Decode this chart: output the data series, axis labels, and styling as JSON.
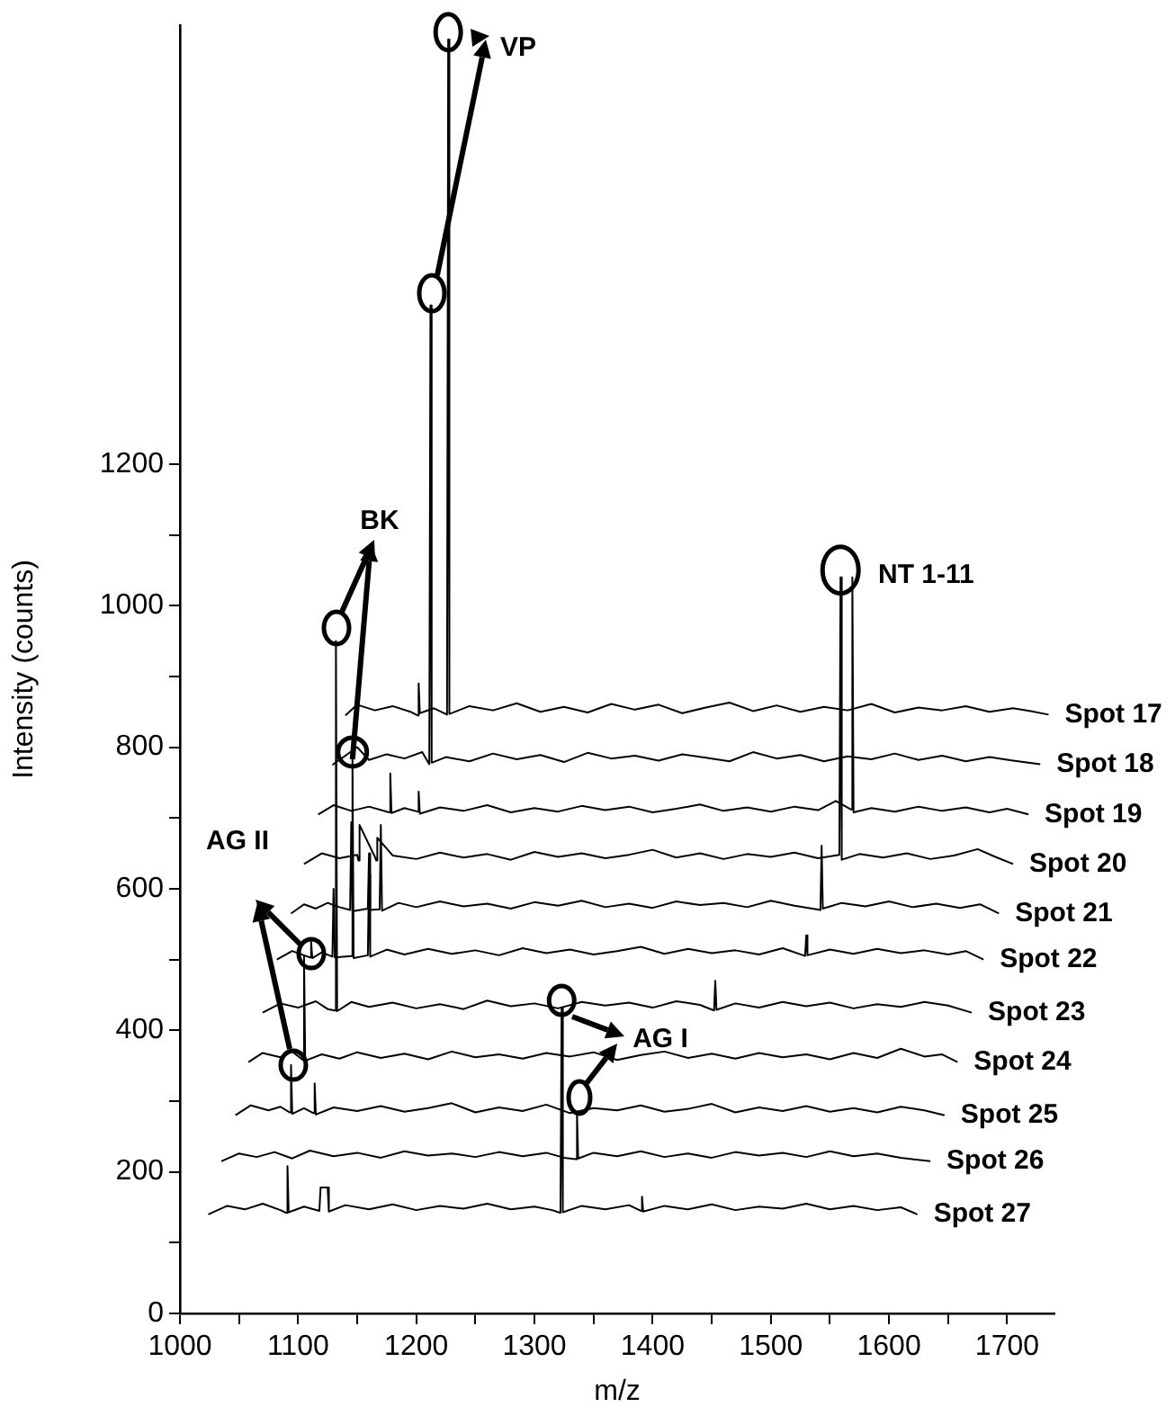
{
  "chart_data": {
    "type": "line",
    "xlabel": "m/z",
    "ylabel": "Intensity (counts)",
    "xlim": [
      1000,
      1740
    ],
    "ylim": [
      0,
      1820
    ],
    "xticks": [
      1000,
      {
        "value": 1050,
        "label": null
      },
      1100,
      {
        "value": 1150,
        "label": null
      },
      1200,
      {
        "value": 1250,
        "label": null
      },
      1300,
      {
        "value": 1350,
        "label": null
      },
      1400,
      {
        "value": 1450,
        "label": null
      },
      1500,
      {
        "value": 1550,
        "label": null
      },
      1600,
      {
        "value": 1650,
        "label": null
      },
      1700
    ],
    "yticks": [
      0,
      {
        "value": 100,
        "label": null
      },
      200,
      {
        "value": 300,
        "label": null
      },
      400,
      {
        "value": 500,
        "label": null
      },
      600,
      {
        "value": 700,
        "label": null
      },
      800,
      {
        "value": 900,
        "label": null
      },
      1000,
      {
        "value": 1100,
        "label": null
      },
      1200
    ],
    "grid": false,
    "legend": false,
    "marker": "none",
    "line_style": "solid",
    "annotations": [
      {
        "text": "VP",
        "x": 1227,
        "y": 1800
      },
      {
        "text": "BK",
        "x": 1146,
        "y": 783
      },
      {
        "text": "NT 1-11",
        "x": 1559,
        "y": 1040
      },
      "AG II",
      {
        "text": "AG I",
        "x": 1323,
        "y": 432
      }
    ],
    "series": [
      {
        "name": "Spot 17",
        "color": "#000000",
        "x": [
          1140,
          1150,
          1165,
          1180,
          1195,
          1201,
          1202,
          1203,
          1215,
          1226,
          1227,
          1228,
          1245,
          1265,
          1285,
          1305,
          1325,
          1345,
          1365,
          1385,
          1405,
          1425,
          1445,
          1465,
          1485,
          1505,
          1525,
          1545,
          1565,
          1585,
          1605,
          1625,
          1645,
          1665,
          1685,
          1705,
          1720,
          1735
        ],
        "values": [
          845,
          860,
          852,
          858,
          850,
          845,
          890,
          848,
          855,
          846,
          1800,
          847,
          858,
          852,
          862,
          850,
          857,
          849,
          861,
          853,
          860,
          848,
          856,
          863,
          851,
          859,
          850,
          857,
          852,
          861,
          849,
          856,
          852,
          858,
          850,
          855,
          851,
          846
        ]
      },
      {
        "name": "Spot 18",
        "color": "#000000",
        "x": [
          1129,
          1140,
          1150,
          1160,
          1175,
          1190,
          1205,
          1211,
          1212,
          1213,
          1225,
          1245,
          1265,
          1285,
          1305,
          1325,
          1345,
          1365,
          1385,
          1405,
          1425,
          1445,
          1465,
          1485,
          1505,
          1525,
          1545,
          1565,
          1585,
          1605,
          1625,
          1645,
          1665,
          1685,
          1705,
          1728
        ],
        "values": [
          775,
          788,
          800,
          782,
          790,
          784,
          793,
          776,
          1424,
          778,
          786,
          780,
          791,
          783,
          789,
          779,
          792,
          784,
          788,
          781,
          790,
          785,
          780,
          793,
          784,
          789,
          780,
          787,
          783,
          791,
          782,
          788,
          780,
          786,
          781,
          776
        ]
      },
      {
        "name": "Spot 19",
        "color": "#000000",
        "x": [
          1117,
          1130,
          1145,
          1160,
          1177,
          1178,
          1179,
          1190,
          1201,
          1202,
          1203,
          1220,
          1240,
          1260,
          1280,
          1300,
          1320,
          1340,
          1360,
          1380,
          1400,
          1420,
          1440,
          1460,
          1480,
          1500,
          1520,
          1540,
          1555,
          1568,
          1569,
          1570,
          1585,
          1605,
          1625,
          1645,
          1665,
          1685,
          1700,
          1718
        ],
        "values": [
          705,
          718,
          710,
          716,
          708,
          763,
          707,
          714,
          709,
          737,
          706,
          715,
          710,
          718,
          708,
          714,
          709,
          717,
          711,
          716,
          708,
          713,
          719,
          710,
          715,
          709,
          716,
          711,
          724,
          712,
          1040,
          708,
          714,
          709,
          716,
          710,
          715,
          708,
          713,
          705
        ]
      },
      {
        "name": "Spot 20",
        "color": "#000000",
        "x": [
          1105,
          1120,
          1135,
          1150,
          1151,
          1152,
          1165,
          1166,
          1167,
          1180,
          1200,
          1220,
          1240,
          1260,
          1280,
          1300,
          1320,
          1340,
          1360,
          1380,
          1400,
          1420,
          1440,
          1460,
          1480,
          1500,
          1520,
          1540,
          1558,
          1559,
          1560,
          1575,
          1595,
          1615,
          1635,
          1655,
          1675,
          1690,
          1705
        ],
        "values": [
          635,
          650,
          643,
          648,
          640,
          690,
          645,
          640,
          672,
          647,
          642,
          651,
          644,
          649,
          641,
          652,
          645,
          650,
          643,
          648,
          655,
          644,
          650,
          642,
          649,
          645,
          651,
          643,
          648,
          1040,
          641,
          649,
          644,
          650,
          642,
          647,
          656,
          645,
          635
        ]
      },
      {
        "name": "Spot 21",
        "color": "#000000",
        "x": [
          1094,
          1105,
          1115,
          1125,
          1135,
          1144,
          1145,
          1146,
          1159,
          1160,
          1161,
          1169,
          1170,
          1171,
          1185,
          1200,
          1220,
          1240,
          1260,
          1280,
          1300,
          1320,
          1340,
          1360,
          1380,
          1400,
          1420,
          1440,
          1460,
          1480,
          1500,
          1520,
          1542,
          1543,
          1544,
          1560,
          1580,
          1600,
          1620,
          1640,
          1660,
          1677,
          1693
        ],
        "values": [
          565,
          578,
          572,
          580,
          574,
          570,
          694,
          568,
          572,
          650,
          570,
          571,
          690,
          569,
          580,
          574,
          582,
          575,
          579,
          572,
          581,
          576,
          583,
          574,
          579,
          573,
          582,
          577,
          580,
          574,
          583,
          576,
          570,
          661,
          572,
          580,
          575,
          582,
          574,
          579,
          573,
          578,
          565
        ]
      },
      {
        "name": "Spot 22",
        "color": "#000000",
        "x": [
          1082,
          1095,
          1105,
          1110,
          1111,
          1112,
          1120,
          1129,
          1130,
          1131,
          1145,
          1146,
          1147,
          1159,
          1160,
          1161,
          1175,
          1190,
          1210,
          1230,
          1250,
          1270,
          1290,
          1310,
          1330,
          1350,
          1370,
          1390,
          1410,
          1430,
          1450,
          1470,
          1490,
          1510,
          1529,
          1530,
          1531,
          1550,
          1570,
          1590,
          1610,
          1630,
          1650,
          1665,
          1680
        ],
        "values": [
          500,
          512,
          506,
          503,
          525,
          502,
          510,
          504,
          600,
          503,
          505,
          783,
          502,
          506,
          620,
          504,
          514,
          507,
          515,
          508,
          513,
          506,
          516,
          509,
          514,
          507,
          512,
          518,
          508,
          515,
          509,
          513,
          507,
          516,
          505,
          534,
          506,
          514,
          508,
          515,
          509,
          513,
          507,
          512,
          500
        ]
      },
      {
        "name": "Spot 23",
        "color": "#000000",
        "x": [
          1070,
          1085,
          1100,
          1115,
          1125,
          1131,
          1132,
          1133,
          1145,
          1160,
          1180,
          1200,
          1220,
          1240,
          1260,
          1280,
          1300,
          1320,
          1340,
          1360,
          1380,
          1400,
          1420,
          1440,
          1452,
          1453,
          1454,
          1470,
          1490,
          1510,
          1530,
          1550,
          1570,
          1590,
          1610,
          1630,
          1650,
          1670
        ],
        "values": [
          425,
          438,
          432,
          441,
          430,
          428,
          950,
          427,
          440,
          433,
          439,
          431,
          437,
          430,
          442,
          434,
          438,
          431,
          440,
          435,
          439,
          432,
          441,
          436,
          428,
          470,
          429,
          438,
          432,
          440,
          434,
          439,
          431,
          437,
          433,
          440,
          435,
          425
        ]
      },
      {
        "name": "Spot 24",
        "color": "#000000",
        "x": [
          1058,
          1070,
          1085,
          1095,
          1104,
          1105,
          1106,
          1120,
          1135,
          1150,
          1170,
          1190,
          1210,
          1230,
          1250,
          1270,
          1290,
          1310,
          1330,
          1350,
          1370,
          1390,
          1410,
          1430,
          1450,
          1470,
          1490,
          1510,
          1530,
          1550,
          1570,
          1590,
          1610,
          1630,
          1645,
          1658
        ],
        "values": [
          355,
          368,
          362,
          370,
          358,
          505,
          357,
          366,
          360,
          369,
          361,
          367,
          359,
          370,
          362,
          366,
          360,
          368,
          363,
          369,
          358,
          365,
          370,
          361,
          367,
          360,
          368,
          362,
          366,
          359,
          368,
          361,
          374,
          363,
          366,
          355
        ]
      },
      {
        "name": "Spot 25",
        "color": "#000000",
        "x": [
          1047,
          1060,
          1075,
          1085,
          1093,
          1094,
          1095,
          1105,
          1113,
          1114,
          1115,
          1130,
          1150,
          1170,
          1190,
          1210,
          1230,
          1250,
          1270,
          1290,
          1310,
          1330,
          1350,
          1370,
          1390,
          1410,
          1430,
          1450,
          1470,
          1490,
          1510,
          1530,
          1550,
          1570,
          1590,
          1610,
          1630,
          1647
        ],
        "values": [
          280,
          294,
          287,
          292,
          284,
          351,
          282,
          290,
          283,
          325,
          281,
          291,
          286,
          293,
          285,
          290,
          297,
          284,
          291,
          286,
          295,
          283,
          290,
          287,
          294,
          285,
          289,
          296,
          284,
          291,
          286,
          293,
          285,
          290,
          284,
          292,
          287,
          280
        ]
      },
      {
        "name": "Spot 26",
        "color": "#000000",
        "x": [
          1035,
          1050,
          1065,
          1080,
          1095,
          1110,
          1130,
          1150,
          1170,
          1190,
          1210,
          1230,
          1250,
          1270,
          1290,
          1310,
          1325,
          1335,
          1336,
          1337,
          1350,
          1370,
          1390,
          1410,
          1430,
          1450,
          1470,
          1490,
          1510,
          1530,
          1550,
          1570,
          1590,
          1610,
          1635
        ],
        "values": [
          215,
          226,
          221,
          228,
          219,
          230,
          222,
          227,
          220,
          229,
          223,
          226,
          221,
          228,
          222,
          227,
          220,
          218,
          280,
          219,
          227,
          222,
          229,
          221,
          226,
          220,
          228,
          223,
          227,
          221,
          229,
          222,
          226,
          220,
          215
        ]
      },
      {
        "name": "Spot 27",
        "color": "#000000",
        "x": [
          1024,
          1040,
          1055,
          1070,
          1085,
          1090,
          1091,
          1092,
          1105,
          1118,
          1119,
          1125,
          1126,
          1140,
          1160,
          1180,
          1200,
          1220,
          1240,
          1260,
          1280,
          1300,
          1315,
          1322,
          1323,
          1324,
          1340,
          1360,
          1380,
          1390,
          1391,
          1392,
          1410,
          1430,
          1450,
          1470,
          1490,
          1510,
          1530,
          1550,
          1570,
          1590,
          1610,
          1624
        ],
        "values": [
          140,
          152,
          147,
          155,
          146,
          142,
          208,
          143,
          151,
          145,
          178,
          178,
          144,
          153,
          147,
          154,
          146,
          152,
          148,
          155,
          147,
          151,
          146,
          142,
          432,
          143,
          152,
          147,
          153,
          145,
          165,
          144,
          152,
          147,
          154,
          146,
          151,
          148,
          155,
          147,
          152,
          146,
          150,
          140
        ]
      }
    ]
  }
}
